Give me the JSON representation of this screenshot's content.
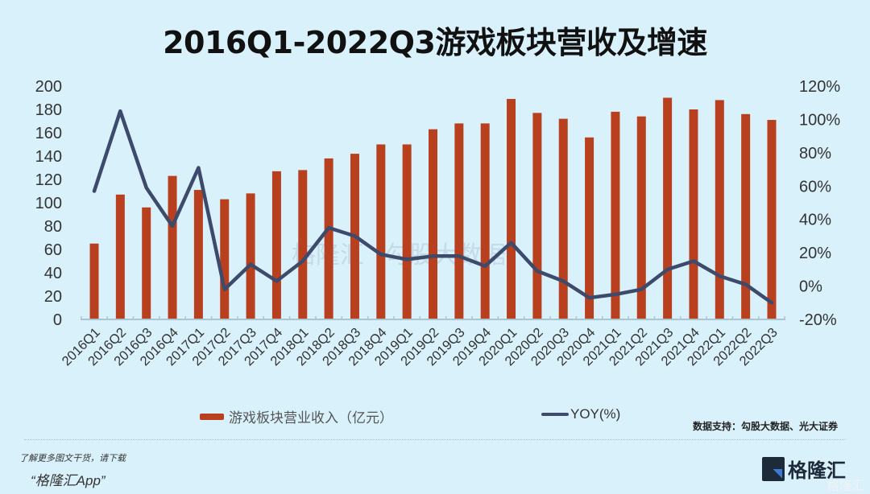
{
  "title": "2016Q1-2022Q3游戏板块营收及增速",
  "legend": {
    "bar_label": "游戏板块营业收入（亿元）",
    "line_label": "YOY(%)"
  },
  "source": "数据支持：勾股大数据、光大证券",
  "footer": {
    "promo_line1": "了解更多图文干货，请下载",
    "promo_line2": "“格隆汇App”",
    "logo_text": "格隆汇",
    "logo_watermark": "格隆汇"
  },
  "watermark": {
    "brand": "格隆汇",
    "data_brand": "勾股大数据",
    "url": "www.gogudata.com"
  },
  "colors": {
    "background": "#d9f1fb",
    "bar": "#b8401f",
    "line": "#3d4a6b",
    "axis": "#aac5d1"
  },
  "chart_data": {
    "type": "bar+line",
    "title": "2016Q1-2022Q3游戏板块营收及增速",
    "xlabel": "",
    "ylabel_left": "游戏板块营业收入（亿元）",
    "ylabel_right": "YOY(%)",
    "ylim_left": [
      0,
      200
    ],
    "ylim_right": [
      -20,
      120
    ],
    "yticks_left": [
      "0",
      "20",
      "40",
      "60",
      "80",
      "100",
      "120",
      "140",
      "160",
      "180",
      "200"
    ],
    "yticks_right": [
      "-20%",
      "0%",
      "20%",
      "40%",
      "60%",
      "80%",
      "100%",
      "120%"
    ],
    "grid": false,
    "legend_position": "bottom",
    "categories": [
      "2016Q1",
      "2016Q2",
      "2016Q3",
      "2016Q4",
      "2017Q1",
      "2017Q2",
      "2017Q3",
      "2017Q4",
      "2018Q1",
      "2018Q2",
      "2018Q3",
      "2018Q4",
      "2019Q1",
      "2019Q2",
      "2019Q3",
      "2019Q4",
      "2020Q1",
      "2020Q2",
      "2020Q3",
      "2020Q4",
      "2021Q1",
      "2021Q2",
      "2021Q3",
      "2021Q4",
      "2022Q1",
      "2022Q2",
      "2022Q3"
    ],
    "series": [
      {
        "name": "游戏板块营业收入（亿元）",
        "type": "bar",
        "axis": "left",
        "values": [
          65,
          107,
          96,
          123,
          111,
          103,
          108,
          127,
          128,
          138,
          142,
          150,
          150,
          163,
          168,
          168,
          189,
          177,
          172,
          156,
          178,
          174,
          190,
          180,
          188,
          176,
          171
        ]
      },
      {
        "name": "YOY(%)",
        "type": "line",
        "axis": "right",
        "values": [
          57,
          105,
          59,
          36,
          71,
          -2,
          13,
          3,
          15,
          35,
          30,
          19,
          16,
          18,
          18,
          12,
          26,
          9,
          3,
          -7,
          -5,
          -2,
          10,
          15,
          6,
          1,
          -10
        ]
      }
    ]
  }
}
